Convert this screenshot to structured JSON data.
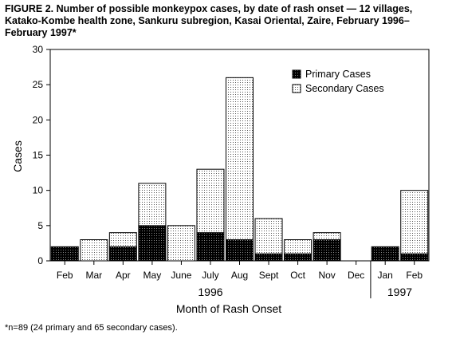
{
  "chart_data": {
    "type": "bar",
    "stacked": true,
    "title": "FIGURE 2. Number of possible monkeypox cases, by date of rash onset — 12 villages, Katako-Kombe health zone, Sankuru subregion, Kasai Oriental, Zaire, February 1996–February 1997*",
    "categories": [
      "Feb",
      "Mar",
      "Apr",
      "May",
      "June",
      "July",
      "Aug",
      "Sept",
      "Oct",
      "Nov",
      "Dec",
      "Jan",
      "Feb"
    ],
    "year_groups": [
      {
        "label": "1996",
        "start": 0,
        "end": 10
      },
      {
        "label": "1997",
        "start": 11,
        "end": 12
      }
    ],
    "series": [
      {
        "name": "Primary Cases",
        "values": [
          2,
          0,
          2,
          5,
          0,
          4,
          3,
          1,
          1,
          3,
          0,
          2,
          1
        ]
      },
      {
        "name": "Secondary Cases",
        "values": [
          0,
          3,
          2,
          6,
          5,
          9,
          23,
          5,
          2,
          1,
          0,
          0,
          9
        ]
      }
    ],
    "xlabel": "Month of Rash Onset",
    "ylabel": "Cases",
    "ylim": [
      0,
      30
    ],
    "yticks": [
      0,
      5,
      10,
      15,
      20,
      25,
      30
    ],
    "legend": "top-right",
    "grid": false,
    "footnote": "*n=89 (24 primary and 65 secondary cases)."
  },
  "colors": {
    "primary": "#000000",
    "secondary_fill": "#ffffff",
    "secondary_dots": "#444444"
  }
}
